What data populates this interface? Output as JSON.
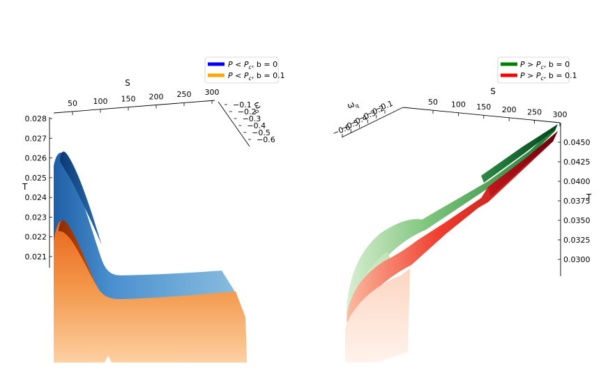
{
  "chart_data": [
    {
      "type": "surface3d",
      "legend": {
        "placement": "top-right",
        "entries": [
          {
            "label_main": "P < P",
            "label_sub": "c",
            "label_tail": ", b = 0",
            "color": "#0000ff"
          },
          {
            "label_main": "P < P",
            "label_sub": "c",
            "label_tail": ", b = 0.1",
            "color": "#ffa500"
          }
        ]
      },
      "axes": {
        "x": {
          "label": "S",
          "ticks": [
            "50",
            "100",
            "150",
            "200",
            "250",
            "300"
          ],
          "range": [
            0,
            300
          ]
        },
        "y": {
          "label": "ω",
          "label_sub": "q",
          "ticks": [
            "−0.1",
            "−0.2",
            "−0.3",
            "−0.4",
            "−0.5",
            "−0.6"
          ],
          "range": [
            -0.6,
            -0.1
          ]
        },
        "z": {
          "label": "T",
          "ticks": [
            "0.021",
            "0.022",
            "0.023",
            "0.024",
            "0.025",
            "0.026",
            "0.027",
            "0.028"
          ],
          "range": [
            0.0205,
            0.028
          ]
        }
      },
      "series": [
        {
          "name": "P < Pc, b = 0",
          "colormap": "Blues",
          "S": [
            5,
            20,
            40,
            60,
            80,
            100,
            120,
            150,
            200,
            250,
            300
          ],
          "T_at_wq_min": [
            0.0255,
            0.0258,
            0.0252,
            0.0238,
            0.0222,
            0.0212,
            0.0209,
            0.0208,
            0.0209,
            0.021,
            0.021
          ]
        },
        {
          "name": "P < Pc, b = 0.1",
          "colormap": "Oranges",
          "S": [
            5,
            20,
            40,
            60,
            80,
            100,
            120,
            150,
            200,
            250,
            300
          ],
          "T_at_wq_min": [
            0.0222,
            0.0226,
            0.0222,
            0.0214,
            0.0205,
            0.0198,
            0.0195,
            0.0194,
            0.0195,
            0.0196,
            0.0196
          ]
        }
      ]
    },
    {
      "type": "surface3d",
      "legend": {
        "placement": "top-right",
        "entries": [
          {
            "label_main": "P > P",
            "label_sub": "c",
            "label_tail": ", b = 0",
            "color": "#008000"
          },
          {
            "label_main": "P > P",
            "label_sub": "c",
            "label_tail": ", b = 0.1",
            "color": "#ff0000"
          }
        ]
      },
      "axes": {
        "x": {
          "label": "S",
          "ticks": [
            "50",
            "100",
            "150",
            "200",
            "250",
            "300"
          ],
          "range": [
            0,
            300
          ]
        },
        "y": {
          "label": "ω",
          "label_sub": "q",
          "ticks": [
            "−0.1",
            "−0.2",
            "−0.3",
            "−0.4",
            "−0.5",
            "−0.6"
          ],
          "range": [
            -0.6,
            -0.1
          ]
        },
        "z": {
          "label": "T",
          "ticks": [
            "0.0300",
            "0.0325",
            "0.0350",
            "0.0375",
            "0.0400",
            "0.0425",
            "0.0450"
          ],
          "range": [
            0.0288,
            0.0465
          ]
        }
      },
      "series": [
        {
          "name": "P > Pc, b = 0",
          "colormap": "Greens",
          "S": [
            10,
            50,
            100,
            150,
            200,
            250,
            300
          ],
          "T_at_wq_max": [
            0.0345,
            0.0362,
            0.0385,
            0.0408,
            0.0428,
            0.0446,
            0.046
          ]
        },
        {
          "name": "P > Pc, b = 0.1",
          "colormap": "Reds",
          "S": [
            10,
            50,
            100,
            150,
            200,
            250,
            300
          ],
          "T_at_wq_max": [
            0.033,
            0.0345,
            0.0368,
            0.0392,
            0.0414,
            0.0436,
            0.0452
          ]
        }
      ]
    }
  ]
}
